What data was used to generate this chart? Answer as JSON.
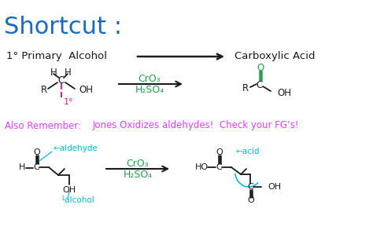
{
  "bg_color": "#ffffff",
  "title": "Shortcut :",
  "title_color": "#1a6bbf",
  "title_fontsize": 22,
  "label_primary": "1° Primary  Alcohol",
  "label_carboxylic": "Carboxylic Acid",
  "label_color": "#222222",
  "reagent_top": "CrO₃",
  "reagent_bot": "H₂SO₄",
  "reagent_color": "#2a9d4e",
  "also_remember": "Also Remember: ",
  "also_jones": "Jones Oxidizes aldehydes!  Check your FG’s!",
  "also_remember_color": "#e040fb",
  "jones_color": "#e040fb",
  "pink_label": "1°",
  "pink_color": "#e91e8c",
  "cyan_aldehyde": "←aldehyde",
  "cyan_acid": "←acid",
  "cyan_alcohol": "└alcohol",
  "cyan_color": "#00bcd4",
  "dark": "#1a1a1a",
  "green": "#2a9d4e",
  "fig_width": 4.74,
  "fig_height": 2.98,
  "dpi": 100
}
